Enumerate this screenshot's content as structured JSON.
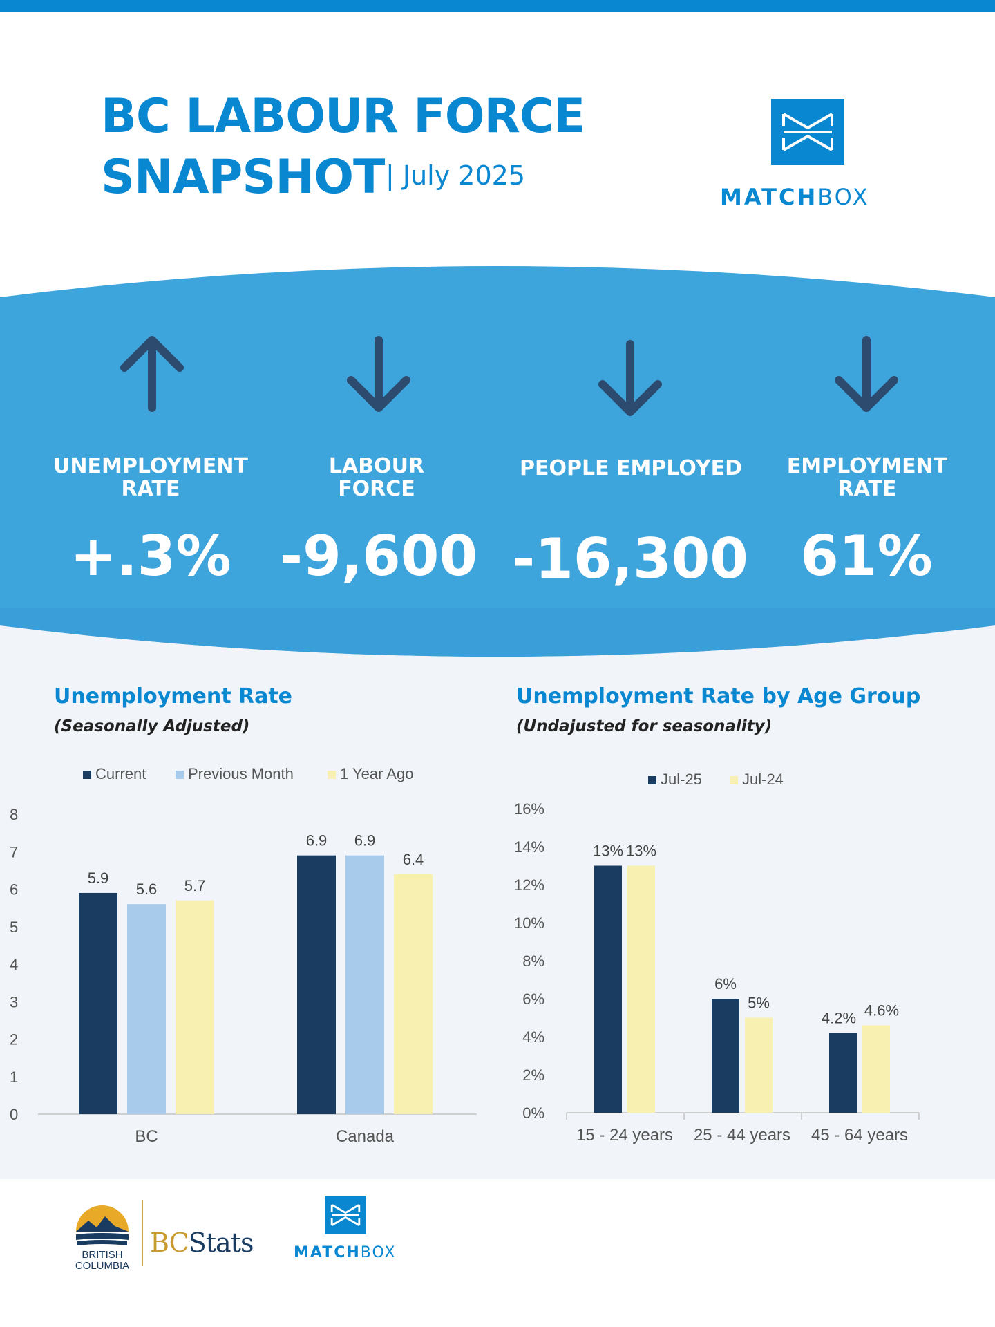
{
  "header": {
    "title_line1": "BC LABOUR FORCE",
    "title_line2": "SNAPSHOT",
    "date": "| July 2025",
    "logo_text_bold": "MATCH",
    "logo_text_light": "BOX"
  },
  "kpis": [
    {
      "label_line1": "UNEMPLOYMENT",
      "label_line2": "RATE",
      "value": "+.3%",
      "direction": "up"
    },
    {
      "label_line1": "LABOUR",
      "label_line2": "FORCE",
      "value": "-9,600",
      "direction": "down"
    },
    {
      "label_line1": "PEOPLE EMPLOYED",
      "label_line2": "",
      "value": "-16,300",
      "direction": "down"
    },
    {
      "label_line1": "EMPLOYMENT",
      "label_line2": "RATE",
      "value": "61%",
      "direction": "down"
    }
  ],
  "colors": {
    "brand_blue": "#0a87d1",
    "band_blue": "#3ea4dc",
    "navy": "#1a3c61",
    "light_blue": "#a9cbeb",
    "pale_yellow": "#f7f0b1",
    "arrow": "#2c4b6e"
  },
  "chart_data": [
    {
      "type": "bar",
      "title": "Unemployment Rate",
      "subtitle": "(Seasonally Adjusted)",
      "categories": [
        "BC",
        "Canada"
      ],
      "series": [
        {
          "name": "Current",
          "values": [
            5.9,
            6.9
          ],
          "labels": [
            "5.9",
            "6.9"
          ],
          "color": "#1a3c61"
        },
        {
          "name": "Previous Month",
          "values": [
            5.6,
            6.9
          ],
          "labels": [
            "5.6",
            "6.9"
          ],
          "color": "#a9cbeb"
        },
        {
          "name": "1 Year Ago",
          "values": [
            5.7,
            6.4
          ],
          "labels": [
            "5.7",
            "6.4"
          ],
          "color": "#f7f0b1"
        }
      ],
      "ylim": [
        0,
        8
      ],
      "yticks": [
        "0",
        "1",
        "2",
        "3",
        "4",
        "5",
        "6",
        "7",
        "8"
      ],
      "legend": "top",
      "grid": false
    },
    {
      "type": "bar",
      "title": "Unemployment Rate by Age Group",
      "subtitle": "(Undajusted for seasonality)",
      "categories": [
        "15 - 24 years",
        "25 - 44 years",
        "45 - 64 years"
      ],
      "series": [
        {
          "name": "Jul-25",
          "values": [
            13,
            6,
            4.2
          ],
          "labels": [
            "13%",
            "6%",
            "4.2%"
          ],
          "color": "#1a3c61"
        },
        {
          "name": "Jul-24",
          "values": [
            13,
            5,
            4.6
          ],
          "labels": [
            "13%",
            "5%",
            "4.6%"
          ],
          "color": "#f7f0b1"
        }
      ],
      "ylim": [
        0,
        16
      ],
      "yticks": [
        "0%",
        "2%",
        "4%",
        "6%",
        "8%",
        "10%",
        "12%",
        "14%",
        "16%"
      ],
      "legend": "top",
      "grid": false
    }
  ],
  "footer": {
    "bc_line1": "BRITISH",
    "bc_line2": "COLUMBIA",
    "bcstats_bc": "BC",
    "bcstats_stats": "Stats",
    "logo_text_bold": "MATCH",
    "logo_text_light": "BOX"
  }
}
